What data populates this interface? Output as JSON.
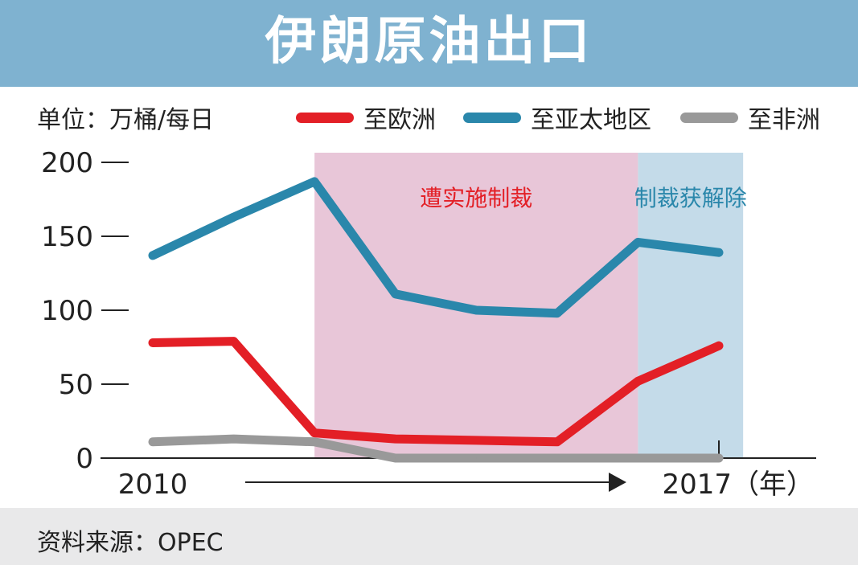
{
  "header": {
    "title": "伊朗原油出口"
  },
  "unit_label": "单位：万桶/每日",
  "source": "资料来源：OPEC",
  "colors": {
    "europe": "#e31f26",
    "asia": "#2a87ab",
    "africa": "#999999",
    "sanction_band": "#e8c6d8",
    "lifted_band": "#c4dbe9",
    "sanction_text": "#e31f26",
    "lifted_text": "#2a87ab"
  },
  "chart_data": {
    "type": "line",
    "xlabel": "",
    "ylabel": "",
    "ylim": [
      0,
      200
    ],
    "yticks": [
      0,
      50,
      100,
      150,
      200
    ],
    "ytick_labels": [
      "0",
      "50",
      "100",
      "150",
      "200"
    ],
    "x": [
      2010,
      2011,
      2012,
      2013,
      2014,
      2015,
      2016,
      2017
    ],
    "x_tick_labels": [
      "2010",
      "2017（年）"
    ],
    "series": [
      {
        "name": "至欧洲",
        "values": [
          78,
          79,
          17,
          13,
          12,
          11,
          52,
          76
        ]
      },
      {
        "name": "至亚太地区",
        "values": [
          137,
          163,
          187,
          111,
          100,
          98,
          146,
          139
        ]
      },
      {
        "name": "至非洲",
        "values": [
          11,
          13,
          11,
          0,
          0,
          0,
          0,
          0
        ]
      }
    ],
    "annotations": [
      {
        "text": "遭实施制裁",
        "x_start": 2012,
        "x_end": 2016
      },
      {
        "text": "制裁获解除",
        "x_start": 2016,
        "x_end": 2017.3
      }
    ],
    "legend": "top",
    "grid": false
  }
}
